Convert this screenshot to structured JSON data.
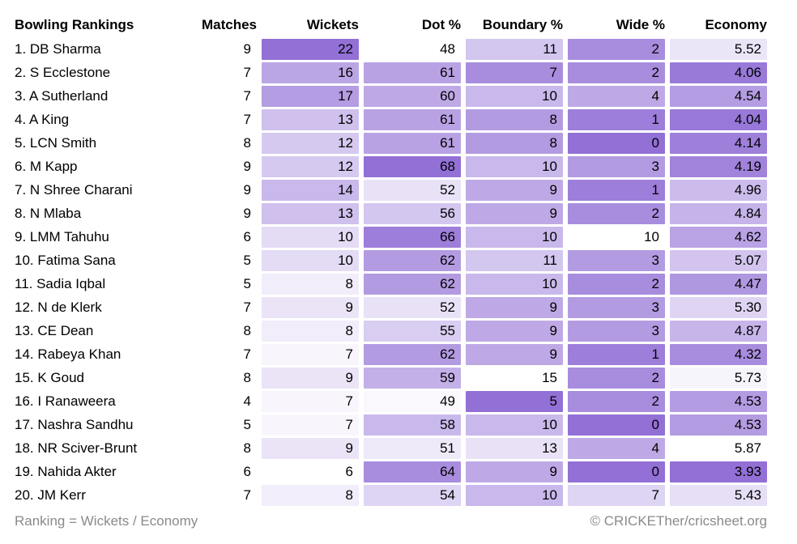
{
  "title": "Bowling Rankings",
  "accent_color": "#9270d6",
  "heatmap_min_color": "#ffffff",
  "footer": {
    "note": "Ranking = Wickets / Economy",
    "credit": "© CRICKETher/cricsheet.org"
  },
  "chart_data": {
    "type": "table",
    "style": "heatmap",
    "title": "Bowling Rankings",
    "legend_position": "none",
    "grid": false,
    "columns": [
      "Bowling Rankings",
      "Matches",
      "Wickets",
      "Dot %",
      "Boundary %",
      "Wide %",
      "Economy"
    ],
    "column_meta": [
      {
        "key": "player",
        "colored": false,
        "align": "left"
      },
      {
        "key": "matches",
        "colored": false,
        "align": "right"
      },
      {
        "key": "wickets",
        "colored": true,
        "better": "high",
        "range": [
          6,
          22
        ]
      },
      {
        "key": "dot_pct",
        "colored": true,
        "better": "high",
        "range": [
          48,
          68
        ]
      },
      {
        "key": "boundary_pct",
        "colored": true,
        "better": "low",
        "range": [
          5,
          15
        ]
      },
      {
        "key": "wide_pct",
        "colored": true,
        "better": "low",
        "range": [
          0,
          10
        ]
      },
      {
        "key": "economy",
        "colored": true,
        "better": "low",
        "range": [
          3.93,
          5.87
        ],
        "decimals": 2
      }
    ],
    "rows": [
      [
        "1. DB Sharma",
        9,
        22,
        48,
        11,
        2,
        5.52
      ],
      [
        "2. S Ecclestone",
        7,
        16,
        61,
        7,
        2,
        4.06
      ],
      [
        "3. A Sutherland",
        7,
        17,
        60,
        10,
        4,
        4.54
      ],
      [
        "4. A King",
        7,
        13,
        61,
        8,
        1,
        4.04
      ],
      [
        "5. LCN Smith",
        8,
        12,
        61,
        8,
        0,
        4.14
      ],
      [
        "6. M Kapp",
        9,
        12,
        68,
        10,
        3,
        4.19
      ],
      [
        "7. N Shree Charani",
        9,
        14,
        52,
        9,
        1,
        4.96
      ],
      [
        "8. N Mlaba",
        9,
        13,
        56,
        9,
        2,
        4.84
      ],
      [
        "9. LMM Tahuhu",
        6,
        10,
        66,
        10,
        10,
        4.62
      ],
      [
        "10. Fatima Sana",
        5,
        10,
        62,
        11,
        3,
        5.07
      ],
      [
        "11. Sadia Iqbal",
        5,
        8,
        62,
        10,
        2,
        4.47
      ],
      [
        "12. N de Klerk",
        7,
        9,
        52,
        9,
        3,
        5.3
      ],
      [
        "13. CE Dean",
        8,
        8,
        55,
        9,
        3,
        4.87
      ],
      [
        "14. Rabeya Khan",
        7,
        7,
        62,
        9,
        1,
        4.32
      ],
      [
        "15. K Goud",
        8,
        9,
        59,
        15,
        2,
        5.73
      ],
      [
        "16. I Ranaweera",
        4,
        7,
        49,
        5,
        2,
        4.53
      ],
      [
        "17. Nashra Sandhu",
        5,
        7,
        58,
        10,
        0,
        4.53
      ],
      [
        "18. NR Sciver-Brunt",
        8,
        9,
        51,
        13,
        4,
        5.87
      ],
      [
        "19. Nahida Akter",
        6,
        6,
        64,
        9,
        0,
        3.93
      ],
      [
        "20. JM Kerr",
        7,
        8,
        54,
        10,
        7,
        5.43
      ]
    ]
  }
}
